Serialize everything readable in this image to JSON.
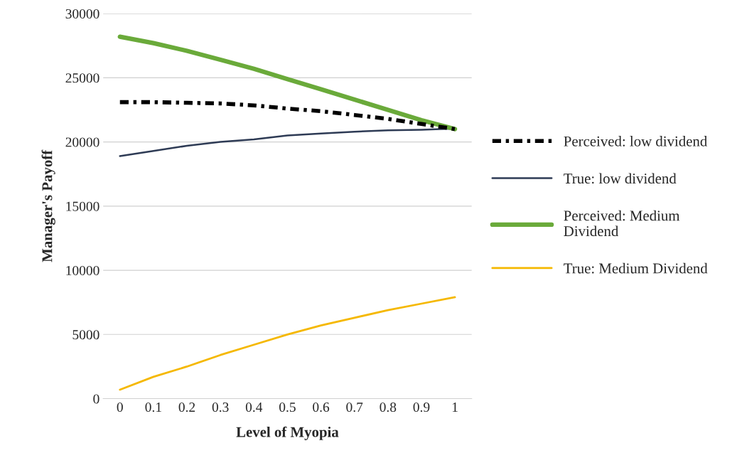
{
  "chart_data": {
    "type": "line",
    "xlabel": "Level of Myopia",
    "ylabel": "Manager's Payoff",
    "x": [
      0,
      0.1,
      0.2,
      0.3,
      0.4,
      0.5,
      0.6,
      0.7,
      0.8,
      0.9,
      1
    ],
    "series": [
      {
        "name": "Perceived: low dividend",
        "color": "#000000",
        "line_style": "dashed",
        "values": [
          23100,
          23100,
          23050,
          23000,
          22850,
          22600,
          22400,
          22100,
          21800,
          21400,
          21000
        ]
      },
      {
        "name": "True: low dividend",
        "color": "#2e3b55",
        "line_style": "solid",
        "values": [
          18900,
          19300,
          19700,
          20000,
          20200,
          20500,
          20650,
          20800,
          20900,
          20950,
          21050
        ]
      },
      {
        "name": "Perceived: Medium Dividend",
        "color": "#6aaa3a",
        "line_style": "solid",
        "values": [
          28200,
          27700,
          27100,
          26400,
          25700,
          24900,
          24100,
          23300,
          22500,
          21700,
          21000
        ]
      },
      {
        "name": "True: Medium Dividend",
        "color": "#f5b800",
        "line_style": "solid",
        "values": [
          700,
          1700,
          2500,
          3400,
          4200,
          5000,
          5700,
          6300,
          6900,
          7400,
          7900
        ]
      }
    ],
    "xlim": [
      -0.05,
      1.05
    ],
    "xticks": [
      0,
      0.1,
      0.2,
      0.3,
      0.4,
      0.5,
      0.6,
      0.7,
      0.8,
      0.9,
      1
    ],
    "ylim": [
      0,
      30000
    ],
    "yticks": [
      0,
      5000,
      10000,
      15000,
      20000,
      25000,
      30000
    ],
    "grid": "y",
    "legend": "right",
    "marker": "none"
  }
}
